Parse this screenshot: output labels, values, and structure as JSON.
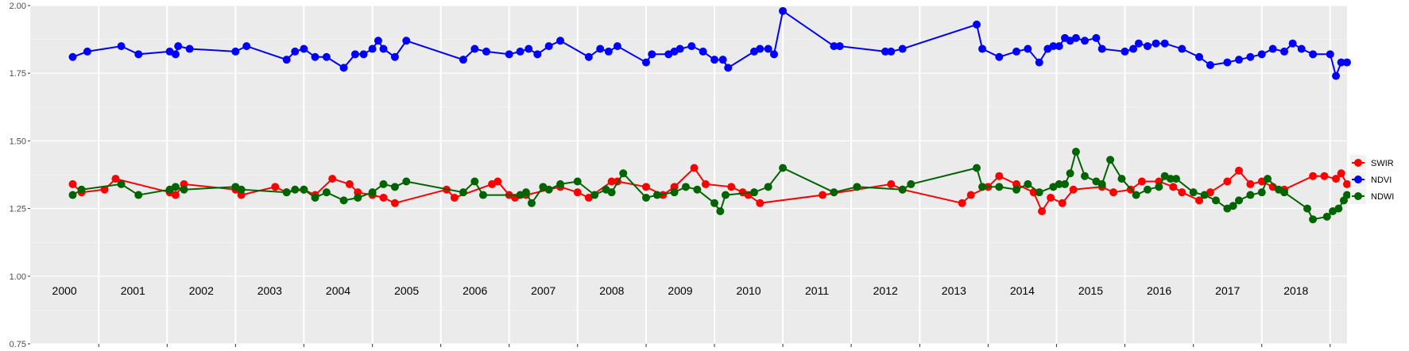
{
  "chart_data": {
    "type": "line",
    "title": "",
    "xlabel": "",
    "ylabel": "",
    "ylim": [
      0.75,
      2.0
    ],
    "xlim": [
      "2000-01-01",
      "2019-04-01"
    ],
    "yticks": [
      "0.75",
      "1.00",
      "1.25",
      "1.50",
      "1.75",
      "2.00"
    ],
    "ytick_values": [
      0.75,
      1.0,
      1.25,
      1.5,
      1.75,
      2.0
    ],
    "year_labels": [
      "2000",
      "2001",
      "2002",
      "2003",
      "2004",
      "2005",
      "2006",
      "2007",
      "2008",
      "2009",
      "2010",
      "2011",
      "2012",
      "2013",
      "2014",
      "2015",
      "2016",
      "2017",
      "2018"
    ],
    "grid": true,
    "background": "#ebebeb",
    "legend_position": "right",
    "series": [
      {
        "name": "SWIR",
        "color": "#ff0000",
        "points": [
          [
            "2000-08-15",
            1.34
          ],
          [
            "2000-10-01",
            1.31
          ],
          [
            "2001-02-01",
            1.32
          ],
          [
            "2001-04-01",
            1.36
          ],
          [
            "2002-01-15",
            1.31
          ],
          [
            "2002-02-15",
            1.3
          ],
          [
            "2002-04-01",
            1.34
          ],
          [
            "2003-01-01",
            1.32
          ],
          [
            "2003-02-01",
            1.3
          ],
          [
            "2003-08-01",
            1.33
          ],
          [
            "2003-10-01",
            1.31
          ],
          [
            "2004-01-01",
            1.32
          ],
          [
            "2004-03-01",
            1.3
          ],
          [
            "2004-06-01",
            1.36
          ],
          [
            "2004-09-01",
            1.34
          ],
          [
            "2004-10-15",
            1.31
          ],
          [
            "2005-01-01",
            1.3
          ],
          [
            "2005-03-01",
            1.29
          ],
          [
            "2005-05-01",
            1.27
          ],
          [
            "2006-02-01",
            1.32
          ],
          [
            "2006-03-15",
            1.29
          ],
          [
            "2006-10-01",
            1.34
          ],
          [
            "2006-11-01",
            1.35
          ],
          [
            "2007-01-01",
            1.3
          ],
          [
            "2007-02-01",
            1.29
          ],
          [
            "2007-04-01",
            1.3
          ],
          [
            "2007-10-01",
            1.33
          ],
          [
            "2008-01-01",
            1.31
          ],
          [
            "2008-03-01",
            1.29
          ],
          [
            "2008-07-01",
            1.35
          ],
          [
            "2008-08-01",
            1.35
          ],
          [
            "2009-01-01",
            1.33
          ],
          [
            "2009-04-01",
            1.3
          ],
          [
            "2009-06-01",
            1.33
          ],
          [
            "2009-09-15",
            1.4
          ],
          [
            "2009-11-15",
            1.34
          ],
          [
            "2010-04-01",
            1.33
          ],
          [
            "2010-06-01",
            1.31
          ],
          [
            "2010-07-01",
            1.3
          ],
          [
            "2010-09-01",
            1.27
          ],
          [
            "2011-08-01",
            1.3
          ],
          [
            "2012-08-01",
            1.34
          ],
          [
            "2012-10-01",
            1.32
          ],
          [
            "2013-08-15",
            1.27
          ],
          [
            "2013-10-01",
            1.3
          ],
          [
            "2014-01-01",
            1.33
          ],
          [
            "2014-03-01",
            1.37
          ],
          [
            "2014-06-01",
            1.34
          ],
          [
            "2014-09-01",
            1.31
          ],
          [
            "2014-10-15",
            1.24
          ],
          [
            "2014-12-01",
            1.29
          ],
          [
            "2015-02-01",
            1.27
          ],
          [
            "2015-04-01",
            1.32
          ],
          [
            "2015-09-01",
            1.33
          ],
          [
            "2015-11-01",
            1.31
          ],
          [
            "2016-02-01",
            1.32
          ],
          [
            "2016-04-01",
            1.35
          ],
          [
            "2016-07-01",
            1.35
          ],
          [
            "2016-09-15",
            1.33
          ],
          [
            "2016-11-01",
            1.31
          ],
          [
            "2017-02-01",
            1.28
          ],
          [
            "2017-04-01",
            1.31
          ],
          [
            "2017-07-01",
            1.35
          ],
          [
            "2017-09-01",
            1.39
          ],
          [
            "2017-11-01",
            1.34
          ],
          [
            "2018-01-01",
            1.35
          ],
          [
            "2018-03-01",
            1.33
          ],
          [
            "2018-05-01",
            1.32
          ],
          [
            "2018-10-01",
            1.37
          ],
          [
            "2018-12-01",
            1.37
          ],
          [
            "2019-02-01",
            1.36
          ],
          [
            "2019-03-01",
            1.38
          ],
          [
            "2019-04-01",
            1.34
          ]
        ]
      },
      {
        "name": "NDVI",
        "color": "#0000ff",
        "points": [
          [
            "2000-08-15",
            1.81
          ],
          [
            "2000-11-01",
            1.83
          ],
          [
            "2001-05-01",
            1.85
          ],
          [
            "2001-08-01",
            1.82
          ],
          [
            "2002-01-15",
            1.83
          ],
          [
            "2002-02-15",
            1.82
          ],
          [
            "2002-03-01",
            1.85
          ],
          [
            "2002-05-01",
            1.84
          ],
          [
            "2003-01-01",
            1.83
          ],
          [
            "2003-03-01",
            1.85
          ],
          [
            "2003-10-01",
            1.8
          ],
          [
            "2003-11-15",
            1.83
          ],
          [
            "2004-01-01",
            1.84
          ],
          [
            "2004-03-01",
            1.81
          ],
          [
            "2004-05-01",
            1.81
          ],
          [
            "2004-08-01",
            1.77
          ],
          [
            "2004-10-01",
            1.82
          ],
          [
            "2004-11-15",
            1.82
          ],
          [
            "2005-01-01",
            1.84
          ],
          [
            "2005-02-01",
            1.87
          ],
          [
            "2005-03-01",
            1.84
          ],
          [
            "2005-05-01",
            1.81
          ],
          [
            "2005-07-01",
            1.87
          ],
          [
            "2006-05-01",
            1.8
          ],
          [
            "2006-07-01",
            1.84
          ],
          [
            "2006-09-01",
            1.83
          ],
          [
            "2007-01-01",
            1.82
          ],
          [
            "2007-03-01",
            1.83
          ],
          [
            "2007-04-15",
            1.84
          ],
          [
            "2007-06-01",
            1.82
          ],
          [
            "2007-08-01",
            1.85
          ],
          [
            "2007-10-01",
            1.87
          ],
          [
            "2008-03-01",
            1.81
          ],
          [
            "2008-05-01",
            1.84
          ],
          [
            "2008-06-15",
            1.83
          ],
          [
            "2008-08-01",
            1.85
          ],
          [
            "2009-01-01",
            1.79
          ],
          [
            "2009-02-01",
            1.82
          ],
          [
            "2009-05-01",
            1.82
          ],
          [
            "2009-06-01",
            1.83
          ],
          [
            "2009-07-01",
            1.84
          ],
          [
            "2009-09-01",
            1.85
          ],
          [
            "2009-11-01",
            1.83
          ],
          [
            "2010-01-01",
            1.8
          ],
          [
            "2010-02-15",
            1.8
          ],
          [
            "2010-03-15",
            1.77
          ],
          [
            "2010-08-01",
            1.83
          ],
          [
            "2010-09-01",
            1.84
          ],
          [
            "2010-10-15",
            1.84
          ],
          [
            "2010-11-15",
            1.82
          ],
          [
            "2011-01-01",
            1.98
          ],
          [
            "2011-10-01",
            1.85
          ],
          [
            "2011-11-01",
            1.85
          ],
          [
            "2012-07-01",
            1.83
          ],
          [
            "2012-08-01",
            1.83
          ],
          [
            "2012-10-01",
            1.84
          ],
          [
            "2013-11-01",
            1.93
          ],
          [
            "2013-12-01",
            1.84
          ],
          [
            "2014-03-01",
            1.81
          ],
          [
            "2014-06-01",
            1.83
          ],
          [
            "2014-08-01",
            1.84
          ],
          [
            "2014-10-01",
            1.79
          ],
          [
            "2014-11-15",
            1.84
          ],
          [
            "2014-12-15",
            1.85
          ],
          [
            "2015-01-15",
            1.85
          ],
          [
            "2015-02-15",
            1.88
          ],
          [
            "2015-03-15",
            1.87
          ],
          [
            "2015-04-15",
            1.88
          ],
          [
            "2015-06-01",
            1.87
          ],
          [
            "2015-08-01",
            1.88
          ],
          [
            "2015-09-01",
            1.84
          ],
          [
            "2016-01-01",
            1.83
          ],
          [
            "2016-02-15",
            1.84
          ],
          [
            "2016-03-15",
            1.86
          ],
          [
            "2016-05-01",
            1.85
          ],
          [
            "2016-06-15",
            1.86
          ],
          [
            "2016-08-01",
            1.86
          ],
          [
            "2016-11-01",
            1.84
          ],
          [
            "2017-02-01",
            1.81
          ],
          [
            "2017-04-01",
            1.78
          ],
          [
            "2017-07-01",
            1.79
          ],
          [
            "2017-09-01",
            1.8
          ],
          [
            "2017-11-01",
            1.81
          ],
          [
            "2018-01-01",
            1.82
          ],
          [
            "2018-03-01",
            1.84
          ],
          [
            "2018-05-01",
            1.83
          ],
          [
            "2018-06-15",
            1.86
          ],
          [
            "2018-08-01",
            1.84
          ],
          [
            "2018-10-01",
            1.82
          ],
          [
            "2019-01-01",
            1.82
          ],
          [
            "2019-02-01",
            1.74
          ],
          [
            "2019-03-01",
            1.79
          ],
          [
            "2019-04-01",
            1.79
          ]
        ]
      },
      {
        "name": "NDWI",
        "color": "#006400",
        "points": [
          [
            "2000-08-15",
            1.3
          ],
          [
            "2000-10-01",
            1.32
          ],
          [
            "2001-05-01",
            1.34
          ],
          [
            "2001-08-01",
            1.3
          ],
          [
            "2002-01-15",
            1.32
          ],
          [
            "2002-02-15",
            1.33
          ],
          [
            "2002-04-01",
            1.32
          ],
          [
            "2003-01-01",
            1.33
          ],
          [
            "2003-02-01",
            1.32
          ],
          [
            "2003-10-01",
            1.31
          ],
          [
            "2003-11-15",
            1.32
          ],
          [
            "2004-01-01",
            1.32
          ],
          [
            "2004-03-01",
            1.29
          ],
          [
            "2004-05-01",
            1.31
          ],
          [
            "2004-08-01",
            1.28
          ],
          [
            "2004-10-15",
            1.29
          ],
          [
            "2005-01-01",
            1.31
          ],
          [
            "2005-03-01",
            1.34
          ],
          [
            "2005-05-01",
            1.33
          ],
          [
            "2005-07-01",
            1.35
          ],
          [
            "2006-05-01",
            1.31
          ],
          [
            "2006-07-01",
            1.35
          ],
          [
            "2006-08-15",
            1.3
          ],
          [
            "2007-03-01",
            1.3
          ],
          [
            "2007-04-01",
            1.31
          ],
          [
            "2007-05-01",
            1.27
          ],
          [
            "2007-07-01",
            1.33
          ],
          [
            "2007-08-01",
            1.32
          ],
          [
            "2007-10-01",
            1.34
          ],
          [
            "2008-01-01",
            1.35
          ],
          [
            "2008-04-01",
            1.3
          ],
          [
            "2008-06-01",
            1.32
          ],
          [
            "2008-07-01",
            1.31
          ],
          [
            "2008-09-01",
            1.38
          ],
          [
            "2009-01-01",
            1.29
          ],
          [
            "2009-03-01",
            1.3
          ],
          [
            "2009-06-01",
            1.31
          ],
          [
            "2009-08-01",
            1.33
          ],
          [
            "2009-10-01",
            1.32
          ],
          [
            "2010-01-01",
            1.27
          ],
          [
            "2010-02-01",
            1.24
          ],
          [
            "2010-03-01",
            1.3
          ],
          [
            "2010-08-01",
            1.31
          ],
          [
            "2010-10-15",
            1.33
          ],
          [
            "2011-01-01",
            1.4
          ],
          [
            "2011-10-01",
            1.31
          ],
          [
            "2012-02-01",
            1.33
          ],
          [
            "2012-10-01",
            1.32
          ],
          [
            "2012-11-15",
            1.34
          ],
          [
            "2013-11-01",
            1.4
          ],
          [
            "2013-12-01",
            1.33
          ],
          [
            "2014-03-01",
            1.33
          ],
          [
            "2014-06-01",
            1.32
          ],
          [
            "2014-08-01",
            1.34
          ],
          [
            "2014-10-01",
            1.31
          ],
          [
            "2014-12-15",
            1.33
          ],
          [
            "2015-01-15",
            1.34
          ],
          [
            "2015-02-15",
            1.34
          ],
          [
            "2015-03-15",
            1.38
          ],
          [
            "2015-04-15",
            1.46
          ],
          [
            "2015-06-01",
            1.37
          ],
          [
            "2015-08-01",
            1.35
          ],
          [
            "2015-09-01",
            1.34
          ],
          [
            "2015-10-15",
            1.43
          ],
          [
            "2015-12-15",
            1.36
          ],
          [
            "2016-03-01",
            1.3
          ],
          [
            "2016-05-01",
            1.32
          ],
          [
            "2016-07-01",
            1.33
          ],
          [
            "2016-08-01",
            1.37
          ],
          [
            "2016-09-01",
            1.36
          ],
          [
            "2016-10-01",
            1.36
          ],
          [
            "2017-01-01",
            1.31
          ],
          [
            "2017-03-01",
            1.3
          ],
          [
            "2017-05-01",
            1.28
          ],
          [
            "2017-07-01",
            1.25
          ],
          [
            "2017-08-01",
            1.26
          ],
          [
            "2017-09-01",
            1.28
          ],
          [
            "2017-11-01",
            1.3
          ],
          [
            "2018-01-01",
            1.31
          ],
          [
            "2018-02-01",
            1.36
          ],
          [
            "2018-04-01",
            1.32
          ],
          [
            "2018-05-01",
            1.31
          ],
          [
            "2018-09-01",
            1.25
          ],
          [
            "2018-10-01",
            1.21
          ],
          [
            "2018-12-15",
            1.22
          ],
          [
            "2019-01-15",
            1.24
          ],
          [
            "2019-02-15",
            1.25
          ],
          [
            "2019-03-15",
            1.28
          ],
          [
            "2019-04-01",
            1.3
          ]
        ]
      }
    ]
  }
}
